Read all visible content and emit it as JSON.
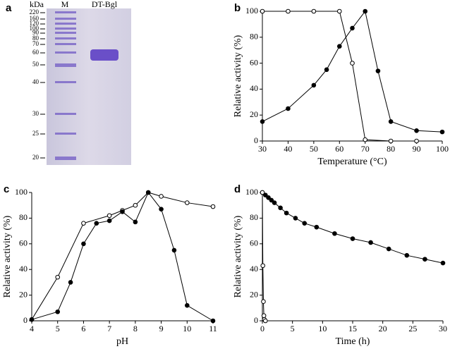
{
  "gel": {
    "panel": "a",
    "unit": "kDa",
    "lanes": [
      "M",
      "DT-Bgl"
    ],
    "markers": [
      "220",
      "160",
      "120",
      "100",
      "90",
      "80",
      "70",
      "60",
      "50",
      "40",
      "30",
      "25",
      "20"
    ]
  },
  "chart_data": [
    {
      "type": "line",
      "panel": "b",
      "xlabel": "Temperature (°C)",
      "ylabel": "Relative activity (%)",
      "xlim": [
        30,
        100
      ],
      "xticks": [
        30,
        40,
        50,
        60,
        70,
        80,
        90,
        100
      ],
      "ylim": [
        0,
        100
      ],
      "yticks": [
        0,
        20,
        40,
        60,
        80,
        100
      ],
      "series": [
        {
          "color": "#000000",
          "filled": true,
          "x": [
            30,
            40,
            50,
            55,
            60,
            65,
            70,
            75,
            80,
            90,
            100
          ],
          "values": [
            15,
            25,
            43,
            55,
            73,
            87,
            100,
            54,
            15,
            8,
            7
          ]
        },
        {
          "color": "#000000",
          "filled": false,
          "x": [
            30,
            40,
            50,
            60,
            65,
            70,
            80,
            90
          ],
          "values": [
            100,
            100,
            100,
            100,
            60,
            1,
            0,
            0
          ]
        }
      ]
    },
    {
      "type": "line",
      "panel": "c",
      "xlabel": "pH",
      "ylabel": "Relative activity (%)",
      "xlim": [
        4,
        11
      ],
      "xticks": [
        4,
        5,
        6,
        7,
        8,
        9,
        10,
        11
      ],
      "ylim": [
        0,
        100
      ],
      "yticks": [
        0,
        20,
        40,
        60,
        80,
        100
      ],
      "series": [
        {
          "color": "#000000",
          "filled": false,
          "x": [
            4,
            5,
            6,
            7,
            7.5,
            8,
            8.5,
            9,
            10,
            11
          ],
          "values": [
            1,
            34,
            76,
            82,
            86,
            90,
            100,
            97,
            92,
            89
          ]
        },
        {
          "color": "#000000",
          "filled": true,
          "x": [
            4,
            5,
            5.5,
            6,
            6.5,
            7,
            7.5,
            8,
            8.5,
            9,
            9.5,
            10,
            11
          ],
          "values": [
            1,
            7,
            30,
            60,
            76,
            78,
            85,
            77,
            100,
            87,
            55,
            12,
            0
          ]
        }
      ]
    },
    {
      "type": "line",
      "panel": "d",
      "xlabel": "Time (h)",
      "ylabel": "Relative activity (%)",
      "xlim": [
        0,
        30
      ],
      "xticks": [
        0,
        5,
        10,
        15,
        20,
        25,
        30
      ],
      "ylim": [
        0,
        100
      ],
      "yticks": [
        0,
        20,
        40,
        60,
        80,
        100
      ],
      "series": [
        {
          "color": "#000000",
          "filled": true,
          "x": [
            0,
            0.5,
            1,
            1.5,
            2,
            3,
            4,
            5.5,
            7,
            9,
            12,
            15,
            18,
            21,
            24,
            27,
            30
          ],
          "values": [
            100,
            98,
            96,
            94,
            92,
            88,
            84,
            80,
            76,
            73,
            68,
            64,
            61,
            56,
            51,
            48,
            45
          ]
        },
        {
          "color": "#000000",
          "filled": false,
          "x": [
            0,
            0.08,
            0.17,
            0.25,
            0.33,
            0.5
          ],
          "values": [
            100,
            43,
            15,
            4,
            1,
            0
          ]
        }
      ]
    }
  ]
}
